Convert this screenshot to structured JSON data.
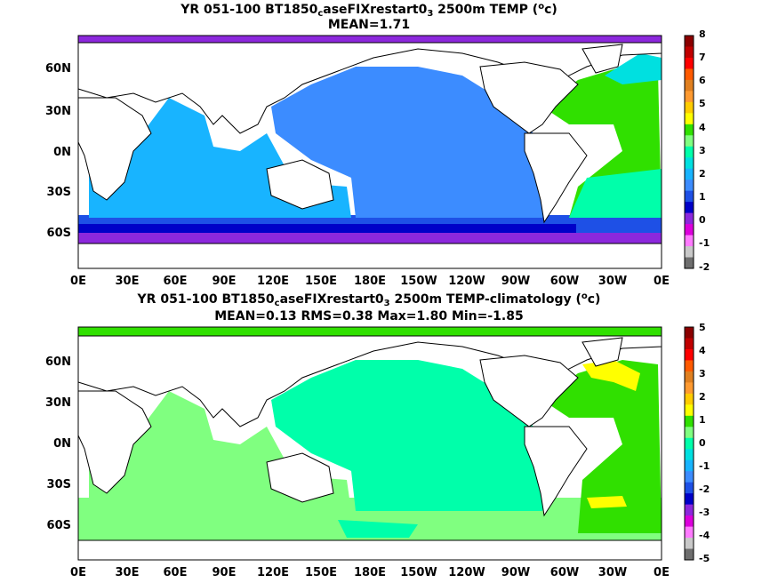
{
  "panels": [
    {
      "title_prefix": "YR 051-100 BT1850",
      "title_sub": "c",
      "title_mid": "aseFIXrestart0",
      "title_sub2": "3",
      "title_suffix": " 2500m TEMP (",
      "title_sup": "o",
      "title_end": "c)",
      "subtitle": "MEAN=1.71",
      "colorbar_labels": [
        "8",
        "7",
        "6",
        "5",
        "4",
        "3",
        "2",
        "1",
        "0",
        "-1",
        "-2"
      ],
      "colorbar_colors": [
        "#8b0000",
        "#c00000",
        "#ff0000",
        "#ff5a00",
        "#e08020",
        "#ff9a30",
        "#ffcc00",
        "#ffff00",
        "#30e000",
        "#80ff80",
        "#00ffaa",
        "#00e0e0",
        "#18b4ff",
        "#3c8cff",
        "#1e50e6",
        "#0000c8",
        "#8c28dc",
        "#dc00dc",
        "#ff7aff",
        "#c8c8c8",
        "#6e6e6e"
      ]
    },
    {
      "title_prefix": "YR 051-100 BT1850",
      "title_sub": "c",
      "title_mid": "aseFIXrestart0",
      "title_sub2": "3",
      "title_suffix": " 2500m TEMP-climatology (",
      "title_sup": "o",
      "title_end": "c)",
      "subtitle": "MEAN=0.13   RMS=0.38   Max=1.80   Min=-1.85",
      "colorbar_labels": [
        "5",
        "4",
        "3",
        "2",
        "1",
        "0",
        "-1",
        "-2",
        "-3",
        "-4",
        "-5"
      ],
      "colorbar_colors": [
        "#8b0000",
        "#c00000",
        "#ff0000",
        "#ff5a00",
        "#e08020",
        "#ff9a30",
        "#ffcc00",
        "#ffff00",
        "#30e000",
        "#80ff80",
        "#00ffaa",
        "#00e0e0",
        "#18b4ff",
        "#3c8cff",
        "#1e50e6",
        "#0000c8",
        "#8c28dc",
        "#dc00dc",
        "#ff7aff",
        "#c8c8c8",
        "#6e6e6e"
      ]
    }
  ],
  "lat_labels": [
    "60N",
    "30N",
    "0N",
    "30S",
    "60S"
  ],
  "lon_labels": [
    "0E",
    "30E",
    "60E",
    "90E",
    "120E",
    "150E",
    "180E",
    "150W",
    "120W",
    "90W",
    "60W",
    "30W",
    "0E"
  ],
  "colors": {
    "pacific_top": "#3c8cff",
    "indian_top": "#18b4ff",
    "southern_top": "#1e50e6",
    "southern_deep_top": "#0000c8",
    "antarctic_top": "#8c28dc",
    "atlantic_top": "#30e000",
    "atlantic_mid_top": "#00ffaa",
    "pacific_bottom": "#00ffaa",
    "indian_bottom": "#80ff80",
    "atlantic_bottom": "#30e000",
    "nadw_anomaly": "#ffff00",
    "land": "#ffffff",
    "coast": "#000000"
  }
}
